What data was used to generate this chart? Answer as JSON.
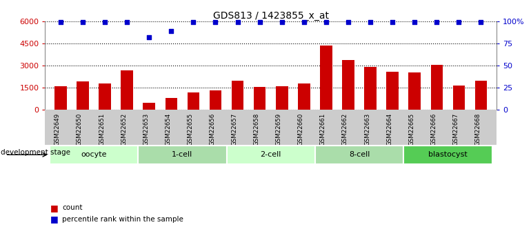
{
  "title": "GDS813 / 1423855_x_at",
  "samples": [
    "GSM22649",
    "GSM22650",
    "GSM22651",
    "GSM22652",
    "GSM22653",
    "GSM22654",
    "GSM22655",
    "GSM22656",
    "GSM22657",
    "GSM22658",
    "GSM22659",
    "GSM22660",
    "GSM22661",
    "GSM22662",
    "GSM22663",
    "GSM22664",
    "GSM22665",
    "GSM22666",
    "GSM22667",
    "GSM22668"
  ],
  "counts": [
    1600,
    1950,
    1800,
    2700,
    500,
    800,
    1200,
    1300,
    2000,
    1550,
    1600,
    1800,
    4350,
    3400,
    2900,
    2600,
    2550,
    3050,
    1650,
    2000
  ],
  "percentiles": [
    99,
    99,
    99,
    99,
    82,
    89,
    99,
    99,
    99,
    99,
    99,
    99,
    99,
    99,
    99,
    99,
    99,
    99,
    99,
    99
  ],
  "bar_color": "#cc0000",
  "dot_color": "#0000cc",
  "ylim_left": [
    0,
    6000
  ],
  "ylim_right": [
    0,
    100
  ],
  "yticks_left": [
    0,
    1500,
    3000,
    4500,
    6000
  ],
  "yticks_right": [
    0,
    25,
    50,
    75,
    100
  ],
  "yticklabels_left": [
    "0",
    "1500",
    "3000",
    "4500",
    "6000"
  ],
  "yticklabels_right": [
    "0",
    "25",
    "50",
    "75",
    "100%"
  ],
  "groups": [
    {
      "label": "oocyte",
      "start": 0,
      "end": 4,
      "color": "#ccffcc"
    },
    {
      "label": "1-cell",
      "start": 4,
      "end": 8,
      "color": "#aaddaa"
    },
    {
      "label": "2-cell",
      "start": 8,
      "end": 12,
      "color": "#ccffcc"
    },
    {
      "label": "8-cell",
      "start": 12,
      "end": 16,
      "color": "#aaddaa"
    },
    {
      "label": "blastocyst",
      "start": 16,
      "end": 20,
      "color": "#55cc55"
    }
  ],
  "xlabel_dev": "development stage",
  "legend_count": "count",
  "legend_pct": "percentile rank within the sample",
  "tick_area_color": "#cccccc"
}
